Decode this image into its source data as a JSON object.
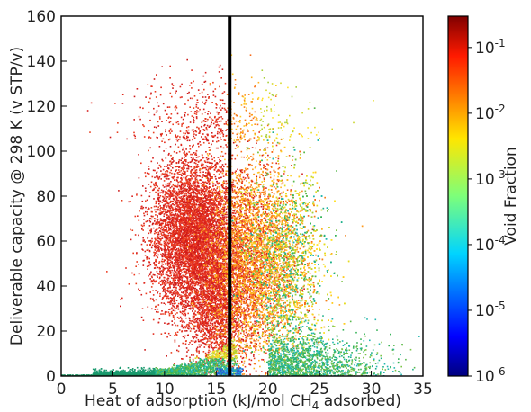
{
  "chart_data": {
    "type": "scatter",
    "title": "",
    "xlabel": "Heat of adsorption (kJ/mol CH",
    "xlabel_sub": "4",
    "xlabel_tail": " adsorbed)",
    "ylabel": "Deliverable capacity @ 298 K (v STP/v)",
    "xlim": [
      0,
      35
    ],
    "ylim": [
      0,
      160
    ],
    "x_ticks": [
      "0",
      "5",
      "10",
      "15",
      "20",
      "25",
      "30",
      "35"
    ],
    "y_ticks": [
      "0",
      "20",
      "40",
      "60",
      "80",
      "100",
      "120",
      "140",
      "160"
    ],
    "vertical_line_x": 16.3,
    "grid": false,
    "colorbar": {
      "label": "Void Fraction",
      "scale": "log",
      "range": [
        1e-06,
        0.3
      ],
      "colormap": "jet",
      "tick_base": "10",
      "tick_exponents": [
        "-1",
        "-2",
        "-3",
        "-4",
        "-5",
        "-6"
      ]
    },
    "series": [
      {
        "description_key": "high-void",
        "color": "#d81e1e",
        "x_center": 12.8,
        "y_center": 62,
        "count_hint": "dense"
      },
      {
        "description_key": "mid-void",
        "color": "#ff9e1a",
        "x_center": 18.5,
        "y_center": 55
      },
      {
        "description_key": "low-void",
        "color": "#b8d334",
        "x_center": 21.5,
        "y_center": 52
      },
      {
        "description_key": "very-low-void",
        "color": "#1fb8c9",
        "x_center": 14.5,
        "y_center": 4
      }
    ]
  }
}
